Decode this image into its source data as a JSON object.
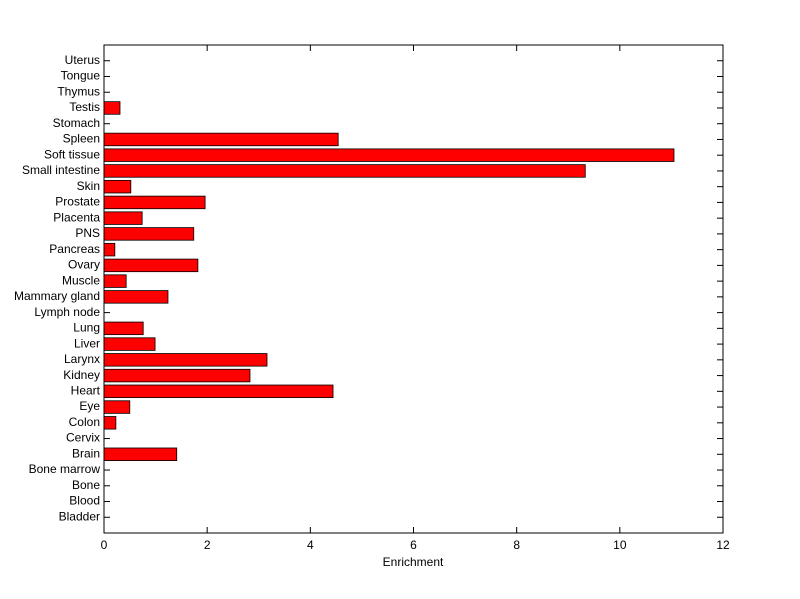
{
  "chart_data": {
    "type": "barh",
    "categories": [
      "Bladder",
      "Blood",
      "Bone",
      "Bone marrow",
      "Brain",
      "Cervix",
      "Colon",
      "Eye",
      "Heart",
      "Kidney",
      "Larynx",
      "Liver",
      "Lung",
      "Lymph node",
      "Mammary gland",
      "Muscle",
      "Ovary",
      "Pancreas",
      "PNS",
      "Placenta",
      "Prostate",
      "Skin",
      "Small intestine",
      "Soft tissue",
      "Spleen",
      "Stomach",
      "Testis",
      "Thymus",
      "Tongue",
      "Uterus"
    ],
    "values": [
      0,
      0,
      0,
      0,
      1.41,
      0,
      0.23,
      0.5,
      4.44,
      2.83,
      3.16,
      0.99,
      0.76,
      0,
      1.24,
      0.43,
      1.82,
      0.21,
      1.74,
      0.74,
      1.96,
      0.52,
      9.33,
      11.05,
      4.54,
      0,
      0.31,
      0,
      0,
      0
    ],
    "color": "#ff0000",
    "xlabel": "Enrichment",
    "xlim": [
      0,
      12
    ],
    "xticks": [
      0,
      2,
      4,
      6,
      8,
      10,
      12
    ],
    "grid": false
  }
}
